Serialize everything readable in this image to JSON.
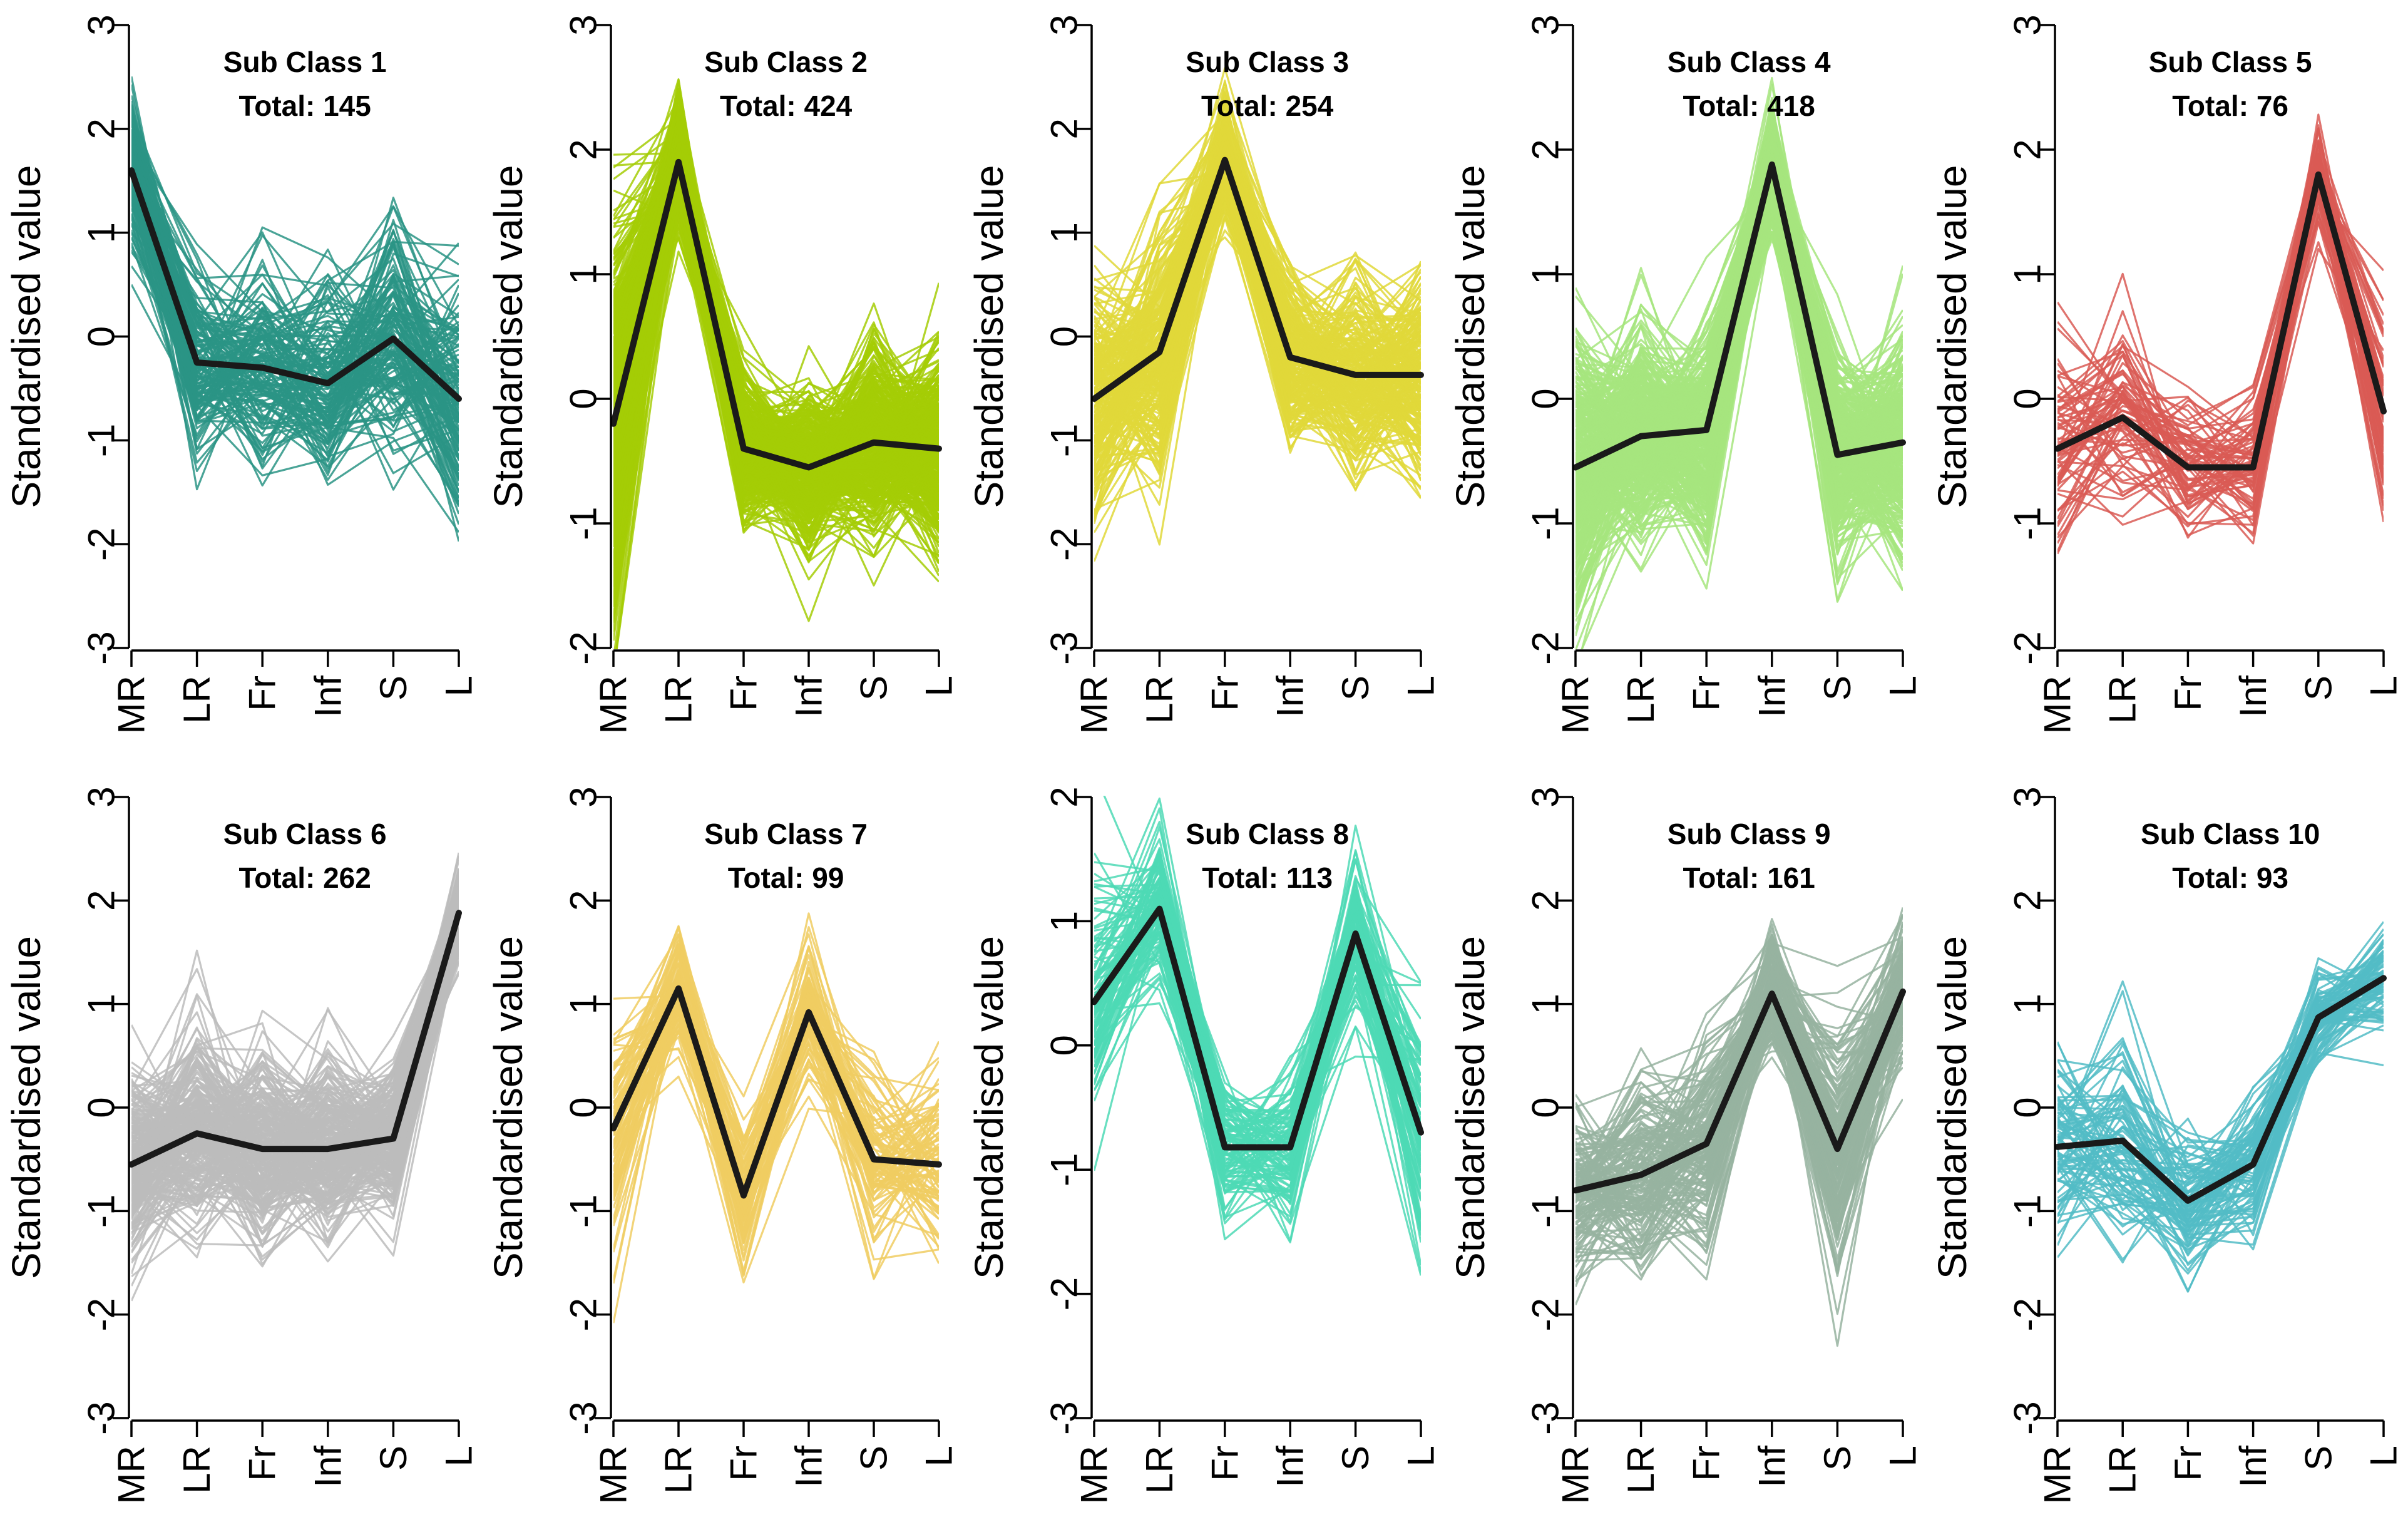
{
  "ylabel": "Standardised value",
  "categories": [
    "MR",
    "LR",
    "Fr",
    "Inf",
    "S",
    "L"
  ],
  "chart_data": [
    {
      "type": "line",
      "title": "Sub Class 1",
      "total_label": "Total: 145",
      "total": 145,
      "color": "#2a9485",
      "mean": [
        1.6,
        -0.25,
        -0.3,
        -0.45,
        -0.02,
        -0.6
      ],
      "spread": [
        0.4,
        0.5,
        0.5,
        0.5,
        0.55,
        0.55
      ],
      "ylim": [
        -3,
        3
      ],
      "yticks": [
        3,
        2,
        1,
        0,
        -1,
        -2,
        -3
      ],
      "ytick_labels": [
        "3",
        "2",
        "1",
        "0",
        "-1",
        "-2",
        "-3"
      ]
    },
    {
      "type": "line",
      "title": "Sub Class 2",
      "total_label": "Total: 424",
      "total": 424,
      "color": "#a4cc06",
      "mean": [
        -0.2,
        1.9,
        -0.4,
        -0.55,
        -0.35,
        -0.4
      ],
      "spread": [
        0.75,
        0.25,
        0.3,
        0.3,
        0.35,
        0.4
      ],
      "ylim": [
        -2,
        3
      ],
      "yticks": [
        3,
        2,
        1,
        0,
        -1,
        -2
      ],
      "ytick_labels": [
        "3",
        "2",
        "1",
        "0",
        "-1",
        "-2"
      ]
    },
    {
      "type": "line",
      "title": "Sub Class 3",
      "total_label": "Total: 254",
      "total": 254,
      "color": "#e0d83a",
      "mean": [
        -0.6,
        -0.15,
        1.7,
        -0.2,
        -0.37,
        -0.37
      ],
      "spread": [
        0.55,
        0.55,
        0.3,
        0.45,
        0.45,
        0.5
      ],
      "ylim": [
        -3,
        3
      ],
      "yticks": [
        3,
        2,
        1,
        0,
        -1,
        -2,
        -3
      ],
      "ytick_labels": [
        "3",
        "2",
        "1",
        "0",
        "-1",
        "-2",
        "-3"
      ]
    },
    {
      "type": "line",
      "title": "Sub Class 4",
      "total_label": "Total: 418",
      "total": 418,
      "color": "#a6e57e",
      "mean": [
        -0.55,
        -0.3,
        -0.25,
        1.88,
        -0.45,
        -0.35
      ],
      "spread": [
        0.55,
        0.4,
        0.4,
        0.25,
        0.4,
        0.45
      ],
      "ylim": [
        -2,
        3
      ],
      "yticks": [
        3,
        2,
        1,
        0,
        -1,
        -2
      ],
      "ytick_labels": [
        "3",
        "2",
        "1",
        "0",
        "-1",
        "-2"
      ]
    },
    {
      "type": "line",
      "title": "Sub Class 5",
      "total_label": "Total: 76",
      "total": 76,
      "color": "#d95b55",
      "mean": [
        -0.4,
        -0.15,
        -0.55,
        -0.55,
        1.8,
        -0.1
      ],
      "spread": [
        0.45,
        0.4,
        0.3,
        0.3,
        0.2,
        0.45
      ],
      "ylim": [
        -2,
        3
      ],
      "yticks": [
        3,
        2,
        1,
        0,
        -1,
        -2
      ],
      "ytick_labels": [
        "3",
        "2",
        "1",
        "0",
        "-1",
        "-2"
      ]
    },
    {
      "type": "line",
      "title": "Sub Class 6",
      "total_label": "Total: 262",
      "total": 262,
      "color": "#bcbcbc",
      "mean": [
        -0.55,
        -0.25,
        -0.4,
        -0.4,
        -0.3,
        1.88
      ],
      "spread": [
        0.45,
        0.5,
        0.45,
        0.4,
        0.35,
        0.2
      ],
      "ylim": [
        -3,
        3
      ],
      "yticks": [
        3,
        2,
        1,
        0,
        -1,
        -2,
        -3
      ],
      "ytick_labels": [
        "3",
        "2",
        "1",
        "0",
        "-1",
        "-2",
        "-3"
      ]
    },
    {
      "type": "line",
      "title": "Sub Class 7",
      "total_label": "Total: 99",
      "total": 99,
      "color": "#f0cc62",
      "mean": [
        -0.2,
        1.15,
        -0.85,
        0.92,
        -0.5,
        -0.55
      ],
      "spread": [
        0.6,
        0.3,
        0.35,
        0.35,
        0.4,
        0.45
      ],
      "ylim": [
        -3,
        3
      ],
      "yticks": [
        3,
        2,
        1,
        0,
        -1,
        -2,
        -3
      ],
      "ytick_labels": [
        "3",
        "2",
        "1",
        "0",
        "-1",
        "-2",
        "-3"
      ]
    },
    {
      "type": "line",
      "title": "Sub Class 8",
      "total_label": "Total: 113",
      "total": 113,
      "color": "#4ed9b5",
      "mean": [
        0.35,
        1.1,
        -0.82,
        -0.82,
        0.9,
        -0.7
      ],
      "spread": [
        0.45,
        0.3,
        0.3,
        0.3,
        0.35,
        0.45
      ],
      "ylim": [
        -3,
        2
      ],
      "yticks": [
        2,
        1,
        0,
        -1,
        -2,
        -3
      ],
      "ytick_labels": [
        "2",
        "1",
        "0",
        "-1",
        "-2",
        "-3"
      ]
    },
    {
      "type": "line",
      "title": "Sub Class 9",
      "total_label": "Total: 161",
      "total": 161,
      "color": "#96b3a0",
      "mean": [
        -0.8,
        -0.65,
        -0.35,
        1.1,
        -0.4,
        1.12
      ],
      "spread": [
        0.4,
        0.45,
        0.45,
        0.3,
        0.55,
        0.35
      ],
      "ylim": [
        -3,
        3
      ],
      "yticks": [
        3,
        2,
        1,
        0,
        -1,
        -2,
        -3
      ],
      "ytick_labels": [
        "3",
        "2",
        "1",
        "0",
        "-1",
        "-2",
        "-3"
      ]
    },
    {
      "type": "line",
      "title": "Sub Class 10",
      "total_label": "Total: 93",
      "total": 93,
      "color": "#52bcc6",
      "mean": [
        -0.38,
        -0.32,
        -0.9,
        -0.55,
        0.87,
        1.25
      ],
      "spread": [
        0.45,
        0.5,
        0.35,
        0.35,
        0.25,
        0.25
      ],
      "ylim": [
        -3,
        3
      ],
      "yticks": [
        3,
        2,
        1,
        0,
        -1,
        -2,
        -3
      ],
      "ytick_labels": [
        "3",
        "2",
        "1",
        "0",
        "-1",
        "-2",
        "-3"
      ]
    }
  ]
}
